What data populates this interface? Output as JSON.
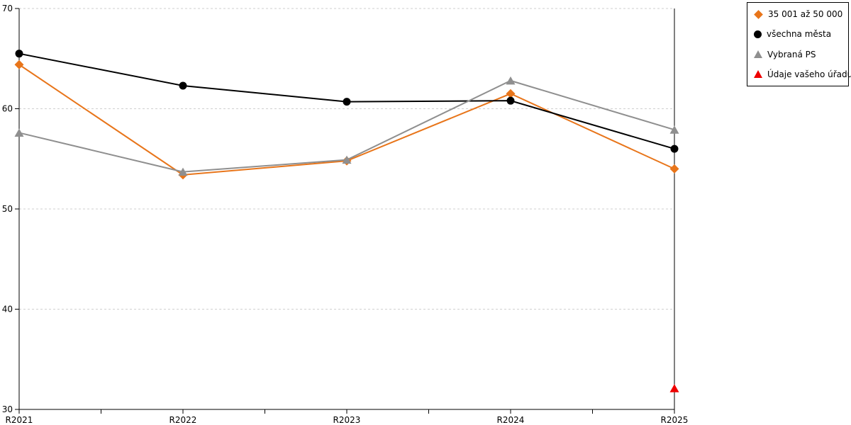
{
  "chart_data": {
    "type": "line",
    "title": "",
    "xlabel": "",
    "ylabel": "",
    "categories": [
      "R2021",
      "R2022",
      "R2023",
      "R2024",
      "R2025"
    ],
    "series": [
      {
        "name": "35 001 až 50 000",
        "marker": "diamond",
        "color": "#E8751A",
        "values": [
          64.4,
          53.4,
          54.8,
          61.5,
          54.0
        ]
      },
      {
        "name": "všechna města",
        "marker": "circle",
        "color": "#000000",
        "values": [
          65.5,
          62.3,
          60.7,
          60.8,
          56.0
        ]
      },
      {
        "name": "Vybraná PS",
        "marker": "triangle",
        "color": "#8F8F8F",
        "values": [
          57.6,
          53.7,
          54.9,
          62.8,
          57.9
        ]
      },
      {
        "name": "Údaje vašeho úřadu",
        "marker": "triangle",
        "color": "#EE0000",
        "values": [
          null,
          null,
          null,
          null,
          32.1
        ]
      }
    ],
    "ylim": [
      30,
      70
    ],
    "y_ticks": [
      30,
      40,
      50,
      60,
      70
    ],
    "grid": "horizontal-dashed",
    "grid_color": "#CFCFCF",
    "axis_color": "#000000",
    "legend_position": "top-right"
  },
  "legend": {
    "items": [
      {
        "label": "35 001 až 50 000"
      },
      {
        "label": "všechna města"
      },
      {
        "label": "Vybraná PS"
      },
      {
        "label": "Údaje vašeho úřadu"
      }
    ]
  }
}
